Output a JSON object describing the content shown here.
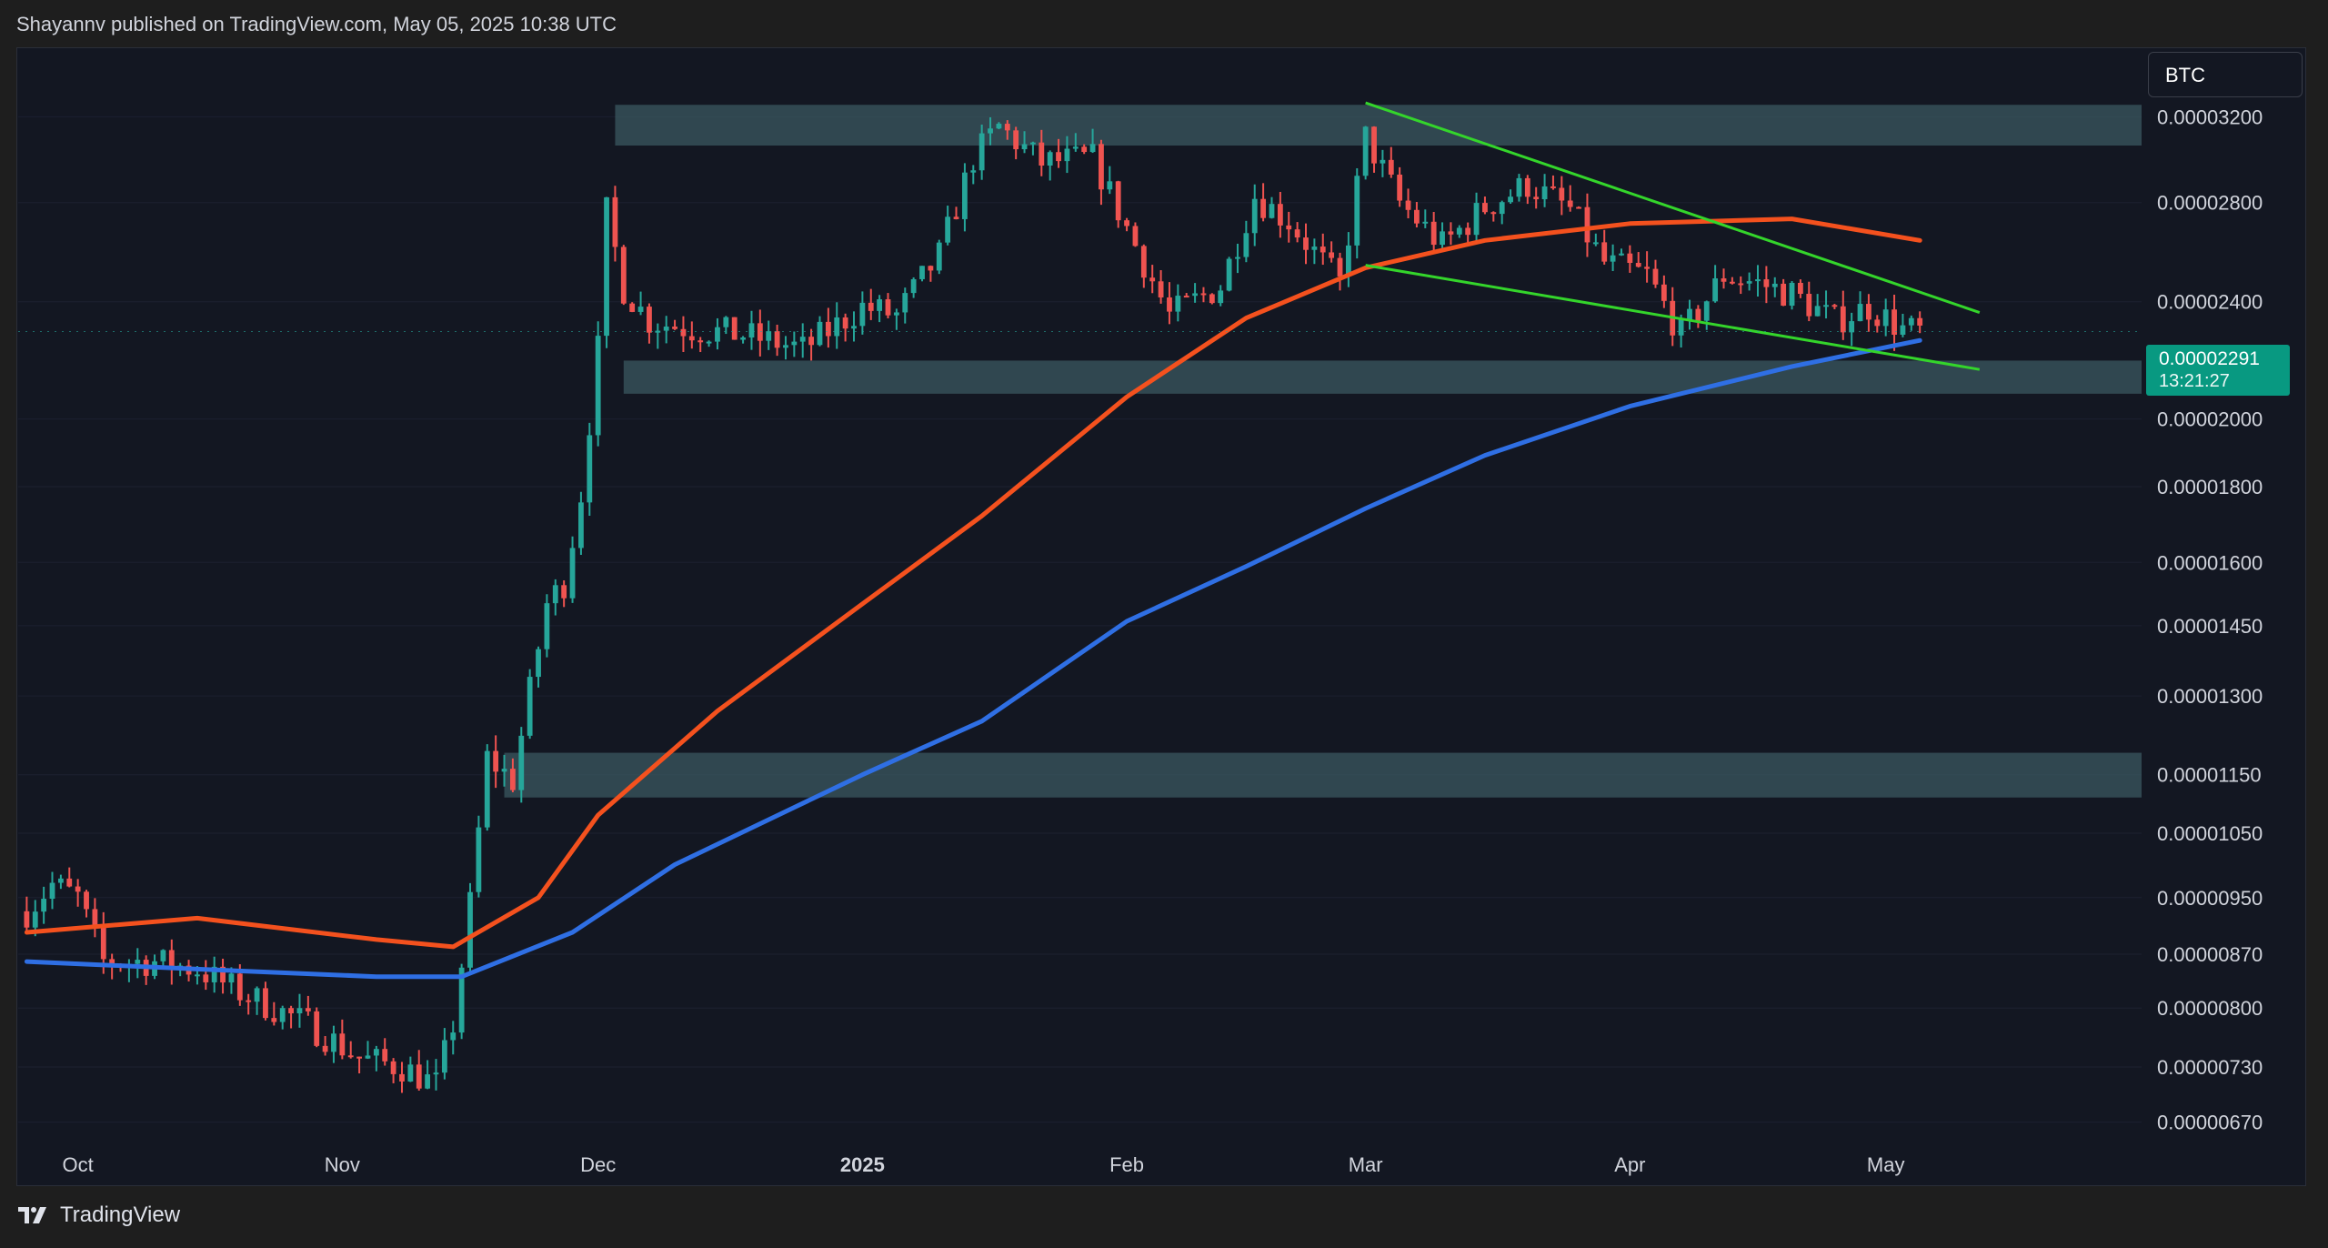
{
  "header": {
    "text": "Shayannv published on TradingView.com, May 05, 2025 10:38 UTC"
  },
  "symbol": {
    "label": "BTC"
  },
  "footer": {
    "brand": "TradingView"
  },
  "price_tag": {
    "price": "0.00002291",
    "countdown": "13:21:27"
  },
  "colors": {
    "background": "#131722",
    "up": "#26a69a",
    "down": "#ef5350",
    "ma_fast": "#f4511e",
    "ma_slow": "#2f6fe4",
    "trendline": "#34d52b",
    "zone": "#3c5a63"
  },
  "chart_data": {
    "type": "candlestick",
    "y_scale": "log",
    "ylim": [
      6.5e-06,
      3.55e-05
    ],
    "y_ticks": [
      "0.00003200",
      "0.00002800",
      "0.00002400",
      "0.00002000",
      "0.00001800",
      "0.00001600",
      "0.00001450",
      "0.00001300",
      "0.00001150",
      "0.00001050",
      "0.00000950",
      "0.00000870",
      "0.00000800",
      "0.00000730",
      "0.00000670"
    ],
    "x_ticks": [
      {
        "label": "Oct",
        "date": "2024-10-01",
        "bold": false
      },
      {
        "label": "Nov",
        "date": "2024-11-01",
        "bold": false
      },
      {
        "label": "Dec",
        "date": "2024-12-01",
        "bold": false
      },
      {
        "label": "2025",
        "date": "2025-01-01",
        "bold": true
      },
      {
        "label": "Feb",
        "date": "2025-02-01",
        "bold": false
      },
      {
        "label": "Mar",
        "date": "2025-03-01",
        "bold": false
      },
      {
        "label": "Apr",
        "date": "2025-04-01",
        "bold": false
      },
      {
        "label": "May",
        "date": "2025-05-01",
        "bold": false
      }
    ],
    "zones": [
      {
        "from_date": "2024-12-03",
        "to_date": "2025-05-31",
        "low": 3.06e-05,
        "high": 3.26e-05
      },
      {
        "from_date": "2024-12-04",
        "to_date": "2025-05-31",
        "low": 2.08e-05,
        "high": 2.19e-05
      },
      {
        "from_date": "2024-11-20",
        "to_date": "2025-05-31",
        "low": 1.11e-05,
        "high": 1.19e-05
      }
    ],
    "trendlines": [
      {
        "from": [
          "2025-03-01",
          3.27e-05
        ],
        "to": [
          "2025-05-12",
          2.36e-05
        ]
      },
      {
        "from": [
          "2025-03-01",
          2.54e-05
        ],
        "to": [
          "2025-05-12",
          2.16e-05
        ]
      }
    ],
    "ma_fast": [
      [
        "2024-09-25",
        9e-06
      ],
      [
        "2024-10-15",
        9.2e-06
      ],
      [
        "2024-11-05",
        8.9e-06
      ],
      [
        "2024-11-14",
        8.8e-06
      ],
      [
        "2024-11-24",
        9.5e-06
      ],
      [
        "2024-12-01",
        1.08e-05
      ],
      [
        "2024-12-15",
        1.27e-05
      ],
      [
        "2025-01-01",
        1.5e-05
      ],
      [
        "2025-01-15",
        1.72e-05
      ],
      [
        "2025-02-01",
        2.07e-05
      ],
      [
        "2025-02-15",
        2.34e-05
      ],
      [
        "2025-03-01",
        2.53e-05
      ],
      [
        "2025-03-15",
        2.64e-05
      ],
      [
        "2025-04-01",
        2.71e-05
      ],
      [
        "2025-04-20",
        2.73e-05
      ],
      [
        "2025-05-05",
        2.64e-05
      ]
    ],
    "ma_slow": [
      [
        "2024-09-25",
        8.6e-06
      ],
      [
        "2024-10-15",
        8.5e-06
      ],
      [
        "2024-11-05",
        8.4e-06
      ],
      [
        "2024-11-15",
        8.4e-06
      ],
      [
        "2024-11-28",
        9e-06
      ],
      [
        "2024-12-10",
        1e-05
      ],
      [
        "2025-01-01",
        1.15e-05
      ],
      [
        "2025-01-15",
        1.25e-05
      ],
      [
        "2025-02-01",
        1.46e-05
      ],
      [
        "2025-02-15",
        1.59e-05
      ],
      [
        "2025-03-01",
        1.74e-05
      ],
      [
        "2025-03-15",
        1.89e-05
      ],
      [
        "2025-04-01",
        2.04e-05
      ],
      [
        "2025-04-20",
        2.17e-05
      ],
      [
        "2025-05-05",
        2.26e-05
      ]
    ],
    "price_path": [
      [
        "2024-09-25",
        9.3e-06
      ],
      [
        "2024-09-28",
        9.7e-06
      ],
      [
        "2024-10-01",
        9.5e-06
      ],
      [
        "2024-10-04",
        8.6e-06
      ],
      [
        "2024-10-10",
        8.6e-06
      ],
      [
        "2024-10-15",
        8.5e-06
      ],
      [
        "2024-10-20",
        8.2e-06
      ],
      [
        "2024-10-28",
        7.8e-06
      ],
      [
        "2024-11-03",
        7.4e-06
      ],
      [
        "2024-11-08",
        7.3e-06
      ],
      [
        "2024-11-12",
        7.1e-06
      ],
      [
        "2024-11-14",
        7.8e-06
      ],
      [
        "2024-11-16",
        9.4e-06
      ],
      [
        "2024-11-18",
        1.18e-05
      ],
      [
        "2024-11-21",
        1.14e-05
      ],
      [
        "2024-11-23",
        1.31e-05
      ],
      [
        "2024-11-25",
        1.5e-05
      ],
      [
        "2024-11-27",
        1.55e-05
      ],
      [
        "2024-11-29",
        1.78e-05
      ],
      [
        "2024-12-01",
        2.23e-05
      ],
      [
        "2024-12-02",
        2.76e-05
      ],
      [
        "2024-12-04",
        2.45e-05
      ],
      [
        "2024-12-07",
        2.33e-05
      ],
      [
        "2024-12-12",
        2.3e-05
      ],
      [
        "2024-12-18",
        2.28e-05
      ],
      [
        "2024-12-25",
        2.23e-05
      ],
      [
        "2025-01-01",
        2.38e-05
      ],
      [
        "2025-01-05",
        2.35e-05
      ],
      [
        "2025-01-10",
        2.58e-05
      ],
      [
        "2025-01-14",
        3e-05
      ],
      [
        "2025-01-17",
        3.15e-05
      ],
      [
        "2025-01-22",
        2.98e-05
      ],
      [
        "2025-01-28",
        3e-05
      ],
      [
        "2025-02-02",
        2.62e-05
      ],
      [
        "2025-02-06",
        2.35e-05
      ],
      [
        "2025-02-12",
        2.46e-05
      ],
      [
        "2025-02-16",
        2.83e-05
      ],
      [
        "2025-02-20",
        2.72e-05
      ],
      [
        "2025-02-26",
        2.47e-05
      ],
      [
        "2025-03-01",
        3.1e-05
      ],
      [
        "2025-03-05",
        2.8e-05
      ],
      [
        "2025-03-10",
        2.62e-05
      ],
      [
        "2025-03-15",
        2.78e-05
      ],
      [
        "2025-03-20",
        2.88e-05
      ],
      [
        "2025-03-25",
        2.77e-05
      ],
      [
        "2025-03-29",
        2.55e-05
      ],
      [
        "2025-04-03",
        2.5e-05
      ],
      [
        "2025-04-07",
        2.28e-05
      ],
      [
        "2025-04-12",
        2.5e-05
      ],
      [
        "2025-04-16",
        2.47e-05
      ],
      [
        "2025-04-20",
        2.43e-05
      ],
      [
        "2025-04-25",
        2.33e-05
      ],
      [
        "2025-04-29",
        2.38e-05
      ],
      [
        "2025-05-03",
        2.3e-05
      ],
      [
        "2025-05-05",
        2.29e-05
      ]
    ],
    "last_price": 2.291e-05
  }
}
